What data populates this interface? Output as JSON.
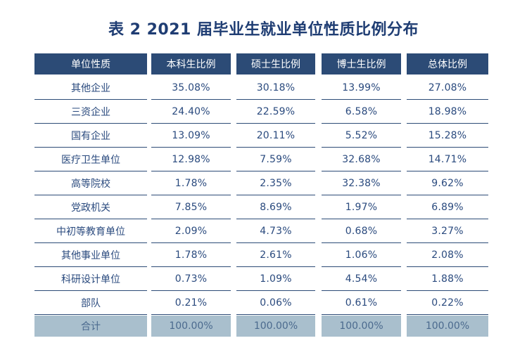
{
  "title": "表 2  2021 届毕业生就业单位性质比例分布",
  "table": {
    "headers": [
      "单位性质",
      "本科生比例",
      "硕士生比例",
      "博士生比例",
      "总体比例"
    ],
    "rows": [
      [
        "其他企业",
        "35.08%",
        "30.18%",
        "13.99%",
        "27.08%"
      ],
      [
        "三资企业",
        "24.40%",
        "22.59%",
        "6.58%",
        "18.98%"
      ],
      [
        "国有企业",
        "13.09%",
        "20.11%",
        "5.52%",
        "15.28%"
      ],
      [
        "医疗卫生单位",
        "12.98%",
        "7.59%",
        "32.68%",
        "14.71%"
      ],
      [
        "高等院校",
        "1.78%",
        "2.35%",
        "32.38%",
        "9.62%"
      ],
      [
        "党政机关",
        "7.85%",
        "8.69%",
        "1.97%",
        "6.89%"
      ],
      [
        "中初等教育单位",
        "2.09%",
        "4.73%",
        "0.68%",
        "3.27%"
      ],
      [
        "其他事业单位",
        "1.78%",
        "2.61%",
        "1.06%",
        "2.08%"
      ],
      [
        "科研设计单位",
        "0.73%",
        "1.09%",
        "4.54%",
        "1.88%"
      ],
      [
        "部队",
        "0.21%",
        "0.06%",
        "0.61%",
        "0.22%"
      ]
    ],
    "total": [
      "合计",
      "100.00%",
      "100.00%",
      "100.00%",
      "100.00%"
    ]
  },
  "colors": {
    "header_bg": "#2c4b76",
    "total_bg": "#a9bfcd",
    "title": "#1f3d73"
  }
}
